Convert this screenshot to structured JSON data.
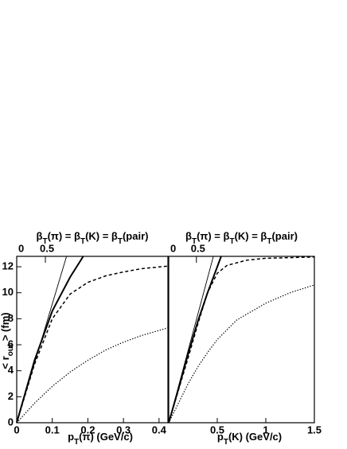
{
  "chart_data": [
    {
      "type": "line",
      "title": "βT(π) = βT(K) = βT(pair)",
      "xlabel": "pT(π) (GeV/c)",
      "ylabel": "< rout > (fm)",
      "xlim": [
        0,
        0.425
      ],
      "ylim": [
        0,
        12.8
      ],
      "xticks": [
        0,
        0.1,
        0.2,
        0.3,
        0.4
      ],
      "yticks": [
        0,
        2,
        4,
        6,
        8,
        10,
        12
      ],
      "x2ticks": [
        0,
        0.5
      ],
      "series": [
        {
          "style": "thin",
          "x": [
            0,
            0.14
          ],
          "values": [
            0,
            12.8
          ]
        },
        {
          "style": "thick",
          "x": [
            0,
            0.05,
            0.1,
            0.15,
            0.187
          ],
          "values": [
            0,
            4.8,
            8.6,
            11.2,
            12.8
          ]
        },
        {
          "style": "dashed",
          "x": [
            0,
            0.05,
            0.1,
            0.15,
            0.2,
            0.25,
            0.3,
            0.35,
            0.425
          ],
          "values": [
            0,
            4.5,
            8.0,
            9.9,
            10.8,
            11.3,
            11.6,
            11.85,
            12.05
          ]
        },
        {
          "style": "dotted",
          "x": [
            0,
            0.05,
            0.1,
            0.15,
            0.2,
            0.25,
            0.3,
            0.35,
            0.425
          ],
          "values": [
            0,
            1.5,
            2.8,
            3.9,
            4.8,
            5.6,
            6.2,
            6.7,
            7.3
          ]
        }
      ]
    },
    {
      "type": "line",
      "title": "βT(π) = βT(K) = βT(pair)",
      "xlabel": "pT(K) (GeV/c)",
      "xlim": [
        0,
        1.5
      ],
      "ylim": [
        0,
        12.8
      ],
      "xticks": [
        0.5,
        1,
        1.5
      ],
      "x2ticks": [
        0,
        0.5
      ],
      "series": [
        {
          "style": "thin",
          "x": [
            0,
            0.46
          ],
          "values": [
            0,
            12.8
          ]
        },
        {
          "style": "thick",
          "x": [
            0,
            0.1,
            0.2,
            0.3,
            0.4,
            0.5,
            0.54
          ],
          "values": [
            0,
            2.6,
            5.3,
            7.8,
            10,
            12,
            12.8
          ]
        },
        {
          "style": "dashed",
          "x": [
            0,
            0.1,
            0.2,
            0.3,
            0.4,
            0.5,
            0.6,
            0.8,
            1.0,
            1.5
          ],
          "values": [
            0,
            2.5,
            5,
            7.6,
            10,
            11.5,
            12.1,
            12.5,
            12.65,
            12.75
          ]
        },
        {
          "style": "dotted",
          "x": [
            0,
            0.1,
            0.2,
            0.3,
            0.4,
            0.5,
            0.7,
            1.0,
            1.25,
            1.5
          ],
          "values": [
            0,
            1.5,
            3,
            4.3,
            5.4,
            6.4,
            7.9,
            9.2,
            10.0,
            10.6
          ]
        }
      ]
    }
  ]
}
